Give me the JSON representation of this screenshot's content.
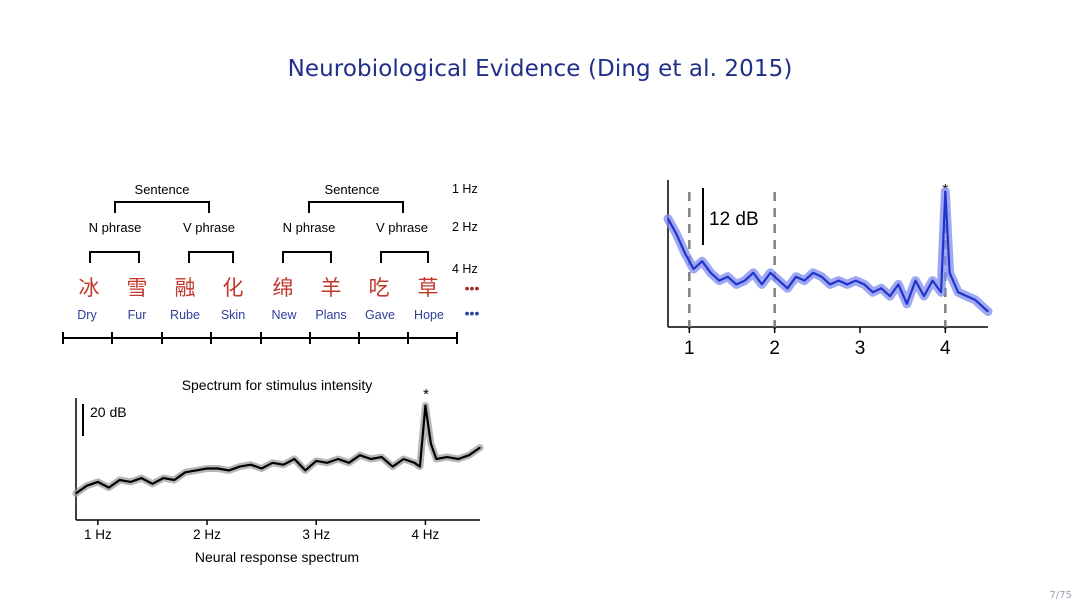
{
  "slide": {
    "title": "Neurobiological Evidence (Ding et al. 2015)",
    "page": "7/75"
  },
  "tree": {
    "groups": [
      {
        "sentence": "Sentence",
        "phrases": [
          {
            "label": "N phrase",
            "words": [
              {
                "zh": "冰",
                "en": "Dry"
              },
              {
                "zh": "雪",
                "en": "Fur"
              }
            ]
          },
          {
            "label": "V phrase",
            "words": [
              {
                "zh": "融",
                "en": "Rube"
              },
              {
                "zh": "化",
                "en": "Skin"
              }
            ]
          }
        ]
      },
      {
        "sentence": "Sentence",
        "phrases": [
          {
            "label": "N phrase",
            "words": [
              {
                "zh": "绵",
                "en": "New"
              },
              {
                "zh": "羊",
                "en": "Plans"
              }
            ]
          },
          {
            "label": "V phrase",
            "words": [
              {
                "zh": "吃",
                "en": "Gave"
              },
              {
                "zh": "草",
                "en": "Hope"
              }
            ]
          }
        ]
      }
    ],
    "freq_labels": [
      "1 Hz",
      "2 Hz",
      "4 Hz"
    ],
    "dots_red": "•••",
    "dots_blue": "•••",
    "colors": {
      "zh": "#c0392b",
      "en": "#2c3e9a",
      "line": "#000000"
    }
  },
  "chart_data": [
    {
      "type": "line",
      "title": "Spectrum for stimulus intensity",
      "xlabel": "Neural response spectrum",
      "ylabel": "",
      "xlim": [
        0.8,
        4.5
      ],
      "scale_bar": "20 dB",
      "annotation": "*",
      "x_ticks": [
        1,
        2,
        3,
        4
      ],
      "x_tick_labels": [
        "1 Hz",
        "2 Hz",
        "3 Hz",
        "4 Hz"
      ],
      "color": "#000000",
      "band_color": "#9e9e9e",
      "x": [
        0.8,
        0.9,
        1.0,
        1.1,
        1.2,
        1.3,
        1.4,
        1.5,
        1.6,
        1.7,
        1.8,
        1.9,
        2.0,
        2.1,
        2.2,
        2.3,
        2.4,
        2.5,
        2.6,
        2.7,
        2.8,
        2.9,
        3.0,
        3.1,
        3.2,
        3.3,
        3.4,
        3.5,
        3.6,
        3.7,
        3.8,
        3.9,
        3.95,
        4.0,
        4.05,
        4.1,
        4.2,
        4.3,
        4.4,
        4.5
      ],
      "y": [
        2,
        6,
        8,
        5,
        9,
        8,
        10,
        7,
        10,
        9,
        13,
        14,
        15,
        15,
        14,
        16,
        17,
        15,
        18,
        17,
        20,
        14,
        19,
        18,
        20,
        18,
        22,
        20,
        21,
        16,
        20,
        18,
        16,
        48,
        28,
        20,
        21,
        20,
        22,
        26
      ]
    },
    {
      "type": "line",
      "title": "",
      "xlabel": "",
      "ylabel": "",
      "xlim": [
        0.75,
        4.5
      ],
      "scale_bar": "12 dB",
      "annotation": "*",
      "x_ticks": [
        1,
        2,
        3,
        4
      ],
      "x_tick_labels": [
        "1",
        "2",
        "3",
        "4"
      ],
      "dashed_lines": [
        1,
        2,
        4
      ],
      "color": "#2233cc",
      "band_color": "#7f8cec",
      "x": [
        0.75,
        0.85,
        0.95,
        1.05,
        1.15,
        1.25,
        1.35,
        1.45,
        1.55,
        1.65,
        1.75,
        1.85,
        1.95,
        2.05,
        2.15,
        2.25,
        2.35,
        2.45,
        2.55,
        2.65,
        2.75,
        2.85,
        2.95,
        3.05,
        3.15,
        3.25,
        3.35,
        3.45,
        3.55,
        3.65,
        3.75,
        3.85,
        3.95,
        4.0,
        4.05,
        4.15,
        4.25,
        4.35,
        4.45,
        4.5
      ],
      "y": [
        28,
        24,
        19,
        15,
        17,
        14,
        12,
        13,
        11,
        12,
        14,
        11,
        14,
        12,
        10,
        13,
        12,
        14,
        13,
        11,
        12,
        11,
        12,
        11,
        9,
        10,
        8,
        11,
        6,
        12,
        8,
        12,
        9,
        35,
        14,
        9,
        8,
        7,
        5,
        4
      ]
    }
  ]
}
